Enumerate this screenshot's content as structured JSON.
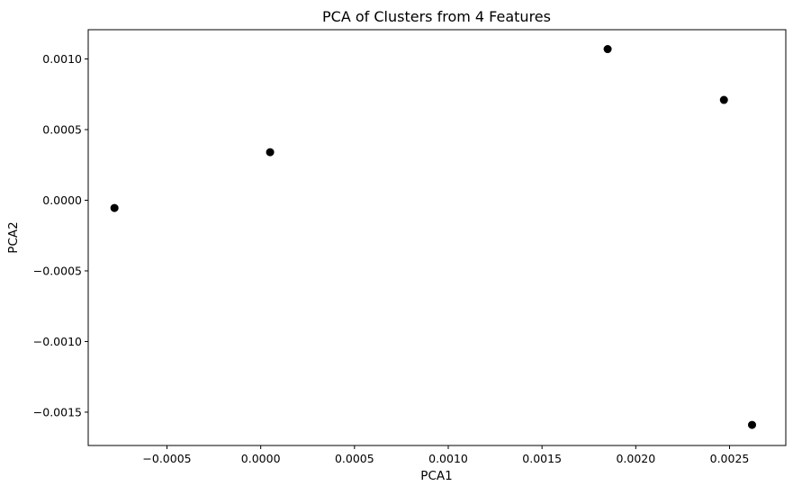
{
  "chart_data": {
    "type": "scatter",
    "title": "PCA of Clusters from 4 Features",
    "xlabel": "PCA1",
    "ylabel": "PCA2",
    "xlim": [
      -0.00092,
      0.0028
    ],
    "ylim": [
      -0.001736,
      0.001207
    ],
    "grid": false,
    "legend": "none",
    "marker_color": "#000000",
    "xticks": [
      {
        "value": -0.0005,
        "label": "−0.0005"
      },
      {
        "value": 0.0,
        "label": "0.0000"
      },
      {
        "value": 0.0005,
        "label": "0.0005"
      },
      {
        "value": 0.001,
        "label": "0.0010"
      },
      {
        "value": 0.0015,
        "label": "0.0015"
      },
      {
        "value": 0.002,
        "label": "0.0020"
      },
      {
        "value": 0.0025,
        "label": "0.0025"
      }
    ],
    "yticks": [
      {
        "value": -0.0015,
        "label": "−0.0015"
      },
      {
        "value": -0.001,
        "label": "−0.0010"
      },
      {
        "value": -0.0005,
        "label": "−0.0005"
      },
      {
        "value": 0.0,
        "label": "0.0000"
      },
      {
        "value": 0.0005,
        "label": "0.0005"
      },
      {
        "value": 0.001,
        "label": "0.0010"
      }
    ],
    "points": [
      {
        "x": -0.00078,
        "y": -5.5e-05
      },
      {
        "x": 5e-05,
        "y": 0.00034
      },
      {
        "x": 0.00185,
        "y": 0.00107
      },
      {
        "x": 0.00247,
        "y": 0.00071
      },
      {
        "x": 0.00262,
        "y": -0.00159
      }
    ]
  }
}
